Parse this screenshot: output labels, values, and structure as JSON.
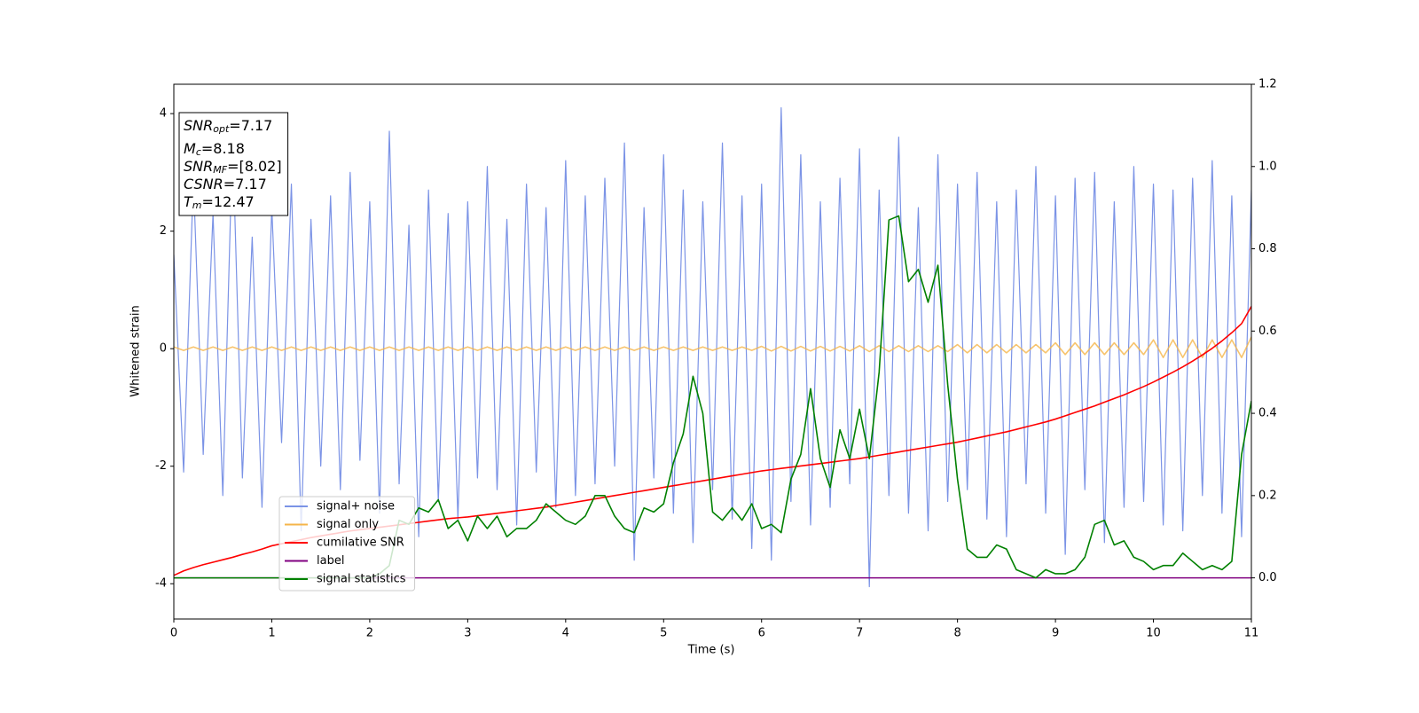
{
  "chart_data": {
    "type": "line",
    "xlabel": "Time (s)",
    "ylabel": "Whitened strain",
    "xlim": [
      0,
      11
    ],
    "ylim": [
      -4.6,
      4.5
    ],
    "y2lim": [
      -0.1,
      1.2
    ],
    "xticks": [
      0,
      1,
      2,
      3,
      4,
      5,
      6,
      7,
      8,
      9,
      10,
      11
    ],
    "yticks": [
      -4,
      -2,
      0,
      2,
      4
    ],
    "y2ticks": [
      {
        "value": 0,
        "label": "0.0"
      },
      {
        "value": 0.2,
        "label": "0.2"
      },
      {
        "value": 0.4,
        "label": "0.4"
      },
      {
        "value": 0.6,
        "label": "0.6"
      },
      {
        "value": 0.8,
        "label": "0.8"
      },
      {
        "value": 1.0,
        "label": "1.0"
      },
      {
        "value": 1.2,
        "label": "1.2"
      }
    ],
    "legend": "lower left",
    "annotation": [
      {
        "main": "SNR",
        "sub": "opt",
        "rest": "=7.17"
      },
      {
        "main": "M",
        "sub": "c",
        "rest": "=8.18"
      },
      {
        "main": "SNR",
        "sub": "MF",
        "rest": "=[8.02]"
      },
      {
        "main": "CSNR",
        "sub": null,
        "rest": "=7.17"
      },
      {
        "main": "T",
        "sub": "m",
        "rest": "=12.47"
      }
    ],
    "x": [
      0,
      0.1,
      0.2,
      0.3,
      0.4,
      0.5,
      0.6,
      0.7,
      0.8,
      0.9,
      1,
      1.1,
      1.2,
      1.3,
      1.4,
      1.5,
      1.6,
      1.7,
      1.8,
      1.9,
      2,
      2.1,
      2.2,
      2.3,
      2.4,
      2.5,
      2.6,
      2.7,
      2.8,
      2.9,
      3,
      3.1,
      3.2,
      3.3,
      3.4,
      3.5,
      3.6,
      3.7,
      3.8,
      3.9,
      4,
      4.1,
      4.2,
      4.3,
      4.4,
      4.5,
      4.6,
      4.7,
      4.8,
      4.9,
      5,
      5.1,
      5.2,
      5.3,
      5.4,
      5.5,
      5.6,
      5.7,
      5.8,
      5.9,
      6,
      6.1,
      6.2,
      6.3,
      6.4,
      6.5,
      6.6,
      6.7,
      6.8,
      6.9,
      7,
      7.1,
      7.2,
      7.3,
      7.4,
      7.5,
      7.6,
      7.7,
      7.8,
      7.9,
      8,
      8.1,
      8.2,
      8.3,
      8.4,
      8.5,
      8.6,
      8.7,
      8.8,
      8.9,
      9,
      9.1,
      9.2,
      9.3,
      9.4,
      9.5,
      9.6,
      9.7,
      9.8,
      9.9,
      10,
      10.1,
      10.2,
      10.3,
      10.4,
      10.5,
      10.6,
      10.7,
      10.8,
      10.9,
      11
    ],
    "series": [
      {
        "name": "signal+ noise",
        "color": "#7b93e6",
        "values": [
          1.6,
          -2.1,
          2.9,
          -1.8,
          2.3,
          -2.5,
          3.6,
          -2.2,
          1.9,
          -2.7,
          2.4,
          -1.6,
          2.8,
          -3.1,
          2.2,
          -2.0,
          2.6,
          -2.4,
          3.0,
          -1.9,
          2.5,
          -2.8,
          3.7,
          -2.3,
          2.1,
          -3.2,
          2.7,
          -2.6,
          2.3,
          -2.9,
          2.5,
          -2.2,
          3.1,
          -2.4,
          2.2,
          -3.0,
          2.8,
          -2.1,
          2.4,
          -2.7,
          3.2,
          -2.5,
          2.6,
          -2.3,
          2.9,
          -2.0,
          3.5,
          -3.6,
          2.4,
          -2.2,
          3.3,
          -2.8,
          2.7,
          -3.3,
          2.5,
          -2.4,
          3.5,
          -2.9,
          2.6,
          -3.4,
          2.8,
          -3.6,
          4.1,
          -2.6,
          3.3,
          -3.0,
          2.5,
          -2.7,
          2.9,
          -2.3,
          3.4,
          -4.05,
          2.7,
          -2.5,
          3.6,
          -2.8,
          2.4,
          -3.1,
          3.3,
          -2.6,
          2.8,
          -2.4,
          3.0,
          -2.9,
          2.5,
          -3.2,
          2.7,
          -2.3,
          3.1,
          -2.8,
          2.6,
          -3.5,
          2.9,
          -2.4,
          3.0,
          -3.3,
          2.5,
          -2.7,
          3.1,
          -2.6,
          2.8,
          -3.0,
          2.7,
          -3.1,
          2.9,
          -2.5,
          3.2,
          -2.8,
          2.6,
          -3.2,
          2.7
        ]
      },
      {
        "name": "signal only",
        "color": "#f5b54a",
        "values": [
          0.03,
          -0.03,
          0.03,
          -0.03,
          0.03,
          -0.03,
          0.03,
          -0.03,
          0.03,
          -0.03,
          0.03,
          -0.03,
          0.03,
          -0.03,
          0.03,
          -0.03,
          0.03,
          -0.03,
          0.03,
          -0.03,
          0.03,
          -0.03,
          0.03,
          -0.03,
          0.03,
          -0.03,
          0.03,
          -0.03,
          0.03,
          -0.03,
          0.03,
          -0.03,
          0.03,
          -0.03,
          0.03,
          -0.03,
          0.03,
          -0.03,
          0.03,
          -0.03,
          0.03,
          -0.03,
          0.03,
          -0.03,
          0.03,
          -0.03,
          0.03,
          -0.03,
          0.03,
          -0.03,
          0.03,
          -0.03,
          0.03,
          -0.03,
          0.03,
          -0.03,
          0.03,
          -0.03,
          0.03,
          -0.03,
          0.04,
          -0.04,
          0.04,
          -0.04,
          0.04,
          -0.04,
          0.04,
          -0.04,
          0.04,
          -0.04,
          0.05,
          -0.05,
          0.05,
          -0.05,
          0.05,
          -0.05,
          0.05,
          -0.05,
          0.05,
          -0.05,
          0.07,
          -0.07,
          0.07,
          -0.07,
          0.07,
          -0.07,
          0.07,
          -0.07,
          0.07,
          -0.07,
          0.1,
          -0.1,
          0.1,
          -0.1,
          0.1,
          -0.1,
          0.1,
          -0.1,
          0.1,
          -0.1,
          0.15,
          -0.15,
          0.15,
          -0.15,
          0.15,
          -0.15,
          0.15,
          -0.15,
          0.15,
          -0.15,
          0.2
        ]
      },
      {
        "name": "cumilative SNR",
        "color": "#ff0000",
        "axis": "y2",
        "values": [
          0.006,
          0.017,
          0.025,
          0.032,
          0.038,
          0.044,
          0.05,
          0.057,
          0.063,
          0.07,
          0.078,
          0.083,
          0.088,
          0.093,
          0.098,
          0.102,
          0.106,
          0.11,
          0.114,
          0.117,
          0.12,
          0.123,
          0.126,
          0.129,
          0.132,
          0.135,
          0.138,
          0.141,
          0.144,
          0.146,
          0.148,
          0.151,
          0.154,
          0.157,
          0.16,
          0.163,
          0.166,
          0.169,
          0.172,
          0.176,
          0.18,
          0.184,
          0.188,
          0.192,
          0.196,
          0.2,
          0.204,
          0.208,
          0.212,
          0.216,
          0.22,
          0.224,
          0.228,
          0.232,
          0.236,
          0.24,
          0.244,
          0.248,
          0.252,
          0.256,
          0.26,
          0.263,
          0.266,
          0.269,
          0.272,
          0.275,
          0.278,
          0.281,
          0.284,
          0.287,
          0.29,
          0.294,
          0.298,
          0.302,
          0.306,
          0.31,
          0.314,
          0.318,
          0.322,
          0.326,
          0.33,
          0.335,
          0.34,
          0.345,
          0.35,
          0.355,
          0.361,
          0.367,
          0.373,
          0.379,
          0.386,
          0.394,
          0.402,
          0.41,
          0.418,
          0.427,
          0.436,
          0.445,
          0.455,
          0.465,
          0.476,
          0.488,
          0.5,
          0.513,
          0.527,
          0.542,
          0.558,
          0.576,
          0.596,
          0.618,
          0.66
        ]
      },
      {
        "name": "label",
        "color": "#800080",
        "axis": "y2",
        "x": [
          0,
          11
        ],
        "values": [
          0,
          0
        ]
      },
      {
        "name": "signal statistics",
        "color": "#008000",
        "axis": "y2",
        "x": [
          0,
          1,
          2,
          2.1,
          2.2,
          2.3,
          2.4,
          2.5,
          2.6,
          2.7,
          2.8,
          2.9,
          3,
          3.1,
          3.2,
          3.3,
          3.4,
          3.5,
          3.6,
          3.7,
          3.8,
          3.9,
          4,
          4.1,
          4.2,
          4.3,
          4.4,
          4.5,
          4.6,
          4.7,
          4.8,
          4.9,
          5,
          5.1,
          5.2,
          5.3,
          5.4,
          5.5,
          5.6,
          5.7,
          5.8,
          5.9,
          6,
          6.1,
          6.2,
          6.3,
          6.4,
          6.5,
          6.6,
          6.7,
          6.8,
          6.9,
          7,
          7.1,
          7.2,
          7.3,
          7.4,
          7.5,
          7.6,
          7.7,
          7.8,
          7.9,
          8,
          8.1,
          8.2,
          8.3,
          8.4,
          8.5,
          8.6,
          8.7,
          8.8,
          8.9,
          9,
          9.1,
          9.2,
          9.3,
          9.4,
          9.5,
          9.6,
          9.7,
          9.8,
          9.9,
          10,
          10.1,
          10.2,
          10.3,
          10.4,
          10.5,
          10.6,
          10.7,
          10.8,
          10.9,
          11
        ],
        "values": [
          0.0,
          0.0,
          0.0,
          0.01,
          0.03,
          0.14,
          0.13,
          0.17,
          0.16,
          0.19,
          0.12,
          0.14,
          0.09,
          0.15,
          0.12,
          0.15,
          0.1,
          0.12,
          0.12,
          0.14,
          0.18,
          0.16,
          0.14,
          0.13,
          0.15,
          0.2,
          0.2,
          0.15,
          0.12,
          0.11,
          0.17,
          0.16,
          0.18,
          0.28,
          0.35,
          0.49,
          0.4,
          0.16,
          0.14,
          0.17,
          0.14,
          0.18,
          0.12,
          0.13,
          0.11,
          0.24,
          0.3,
          0.46,
          0.29,
          0.22,
          0.36,
          0.29,
          0.41,
          0.29,
          0.5,
          0.87,
          0.88,
          0.72,
          0.75,
          0.67,
          0.76,
          0.47,
          0.24,
          0.07,
          0.05,
          0.05,
          0.08,
          0.07,
          0.02,
          0.01,
          0.0,
          0.02,
          0.01,
          0.01,
          0.02,
          0.05,
          0.13,
          0.14,
          0.08,
          0.09,
          0.05,
          0.04,
          0.02,
          0.03,
          0.03,
          0.06,
          0.04,
          0.02,
          0.03,
          0.02,
          0.04,
          0.3,
          0.43
        ]
      }
    ]
  }
}
